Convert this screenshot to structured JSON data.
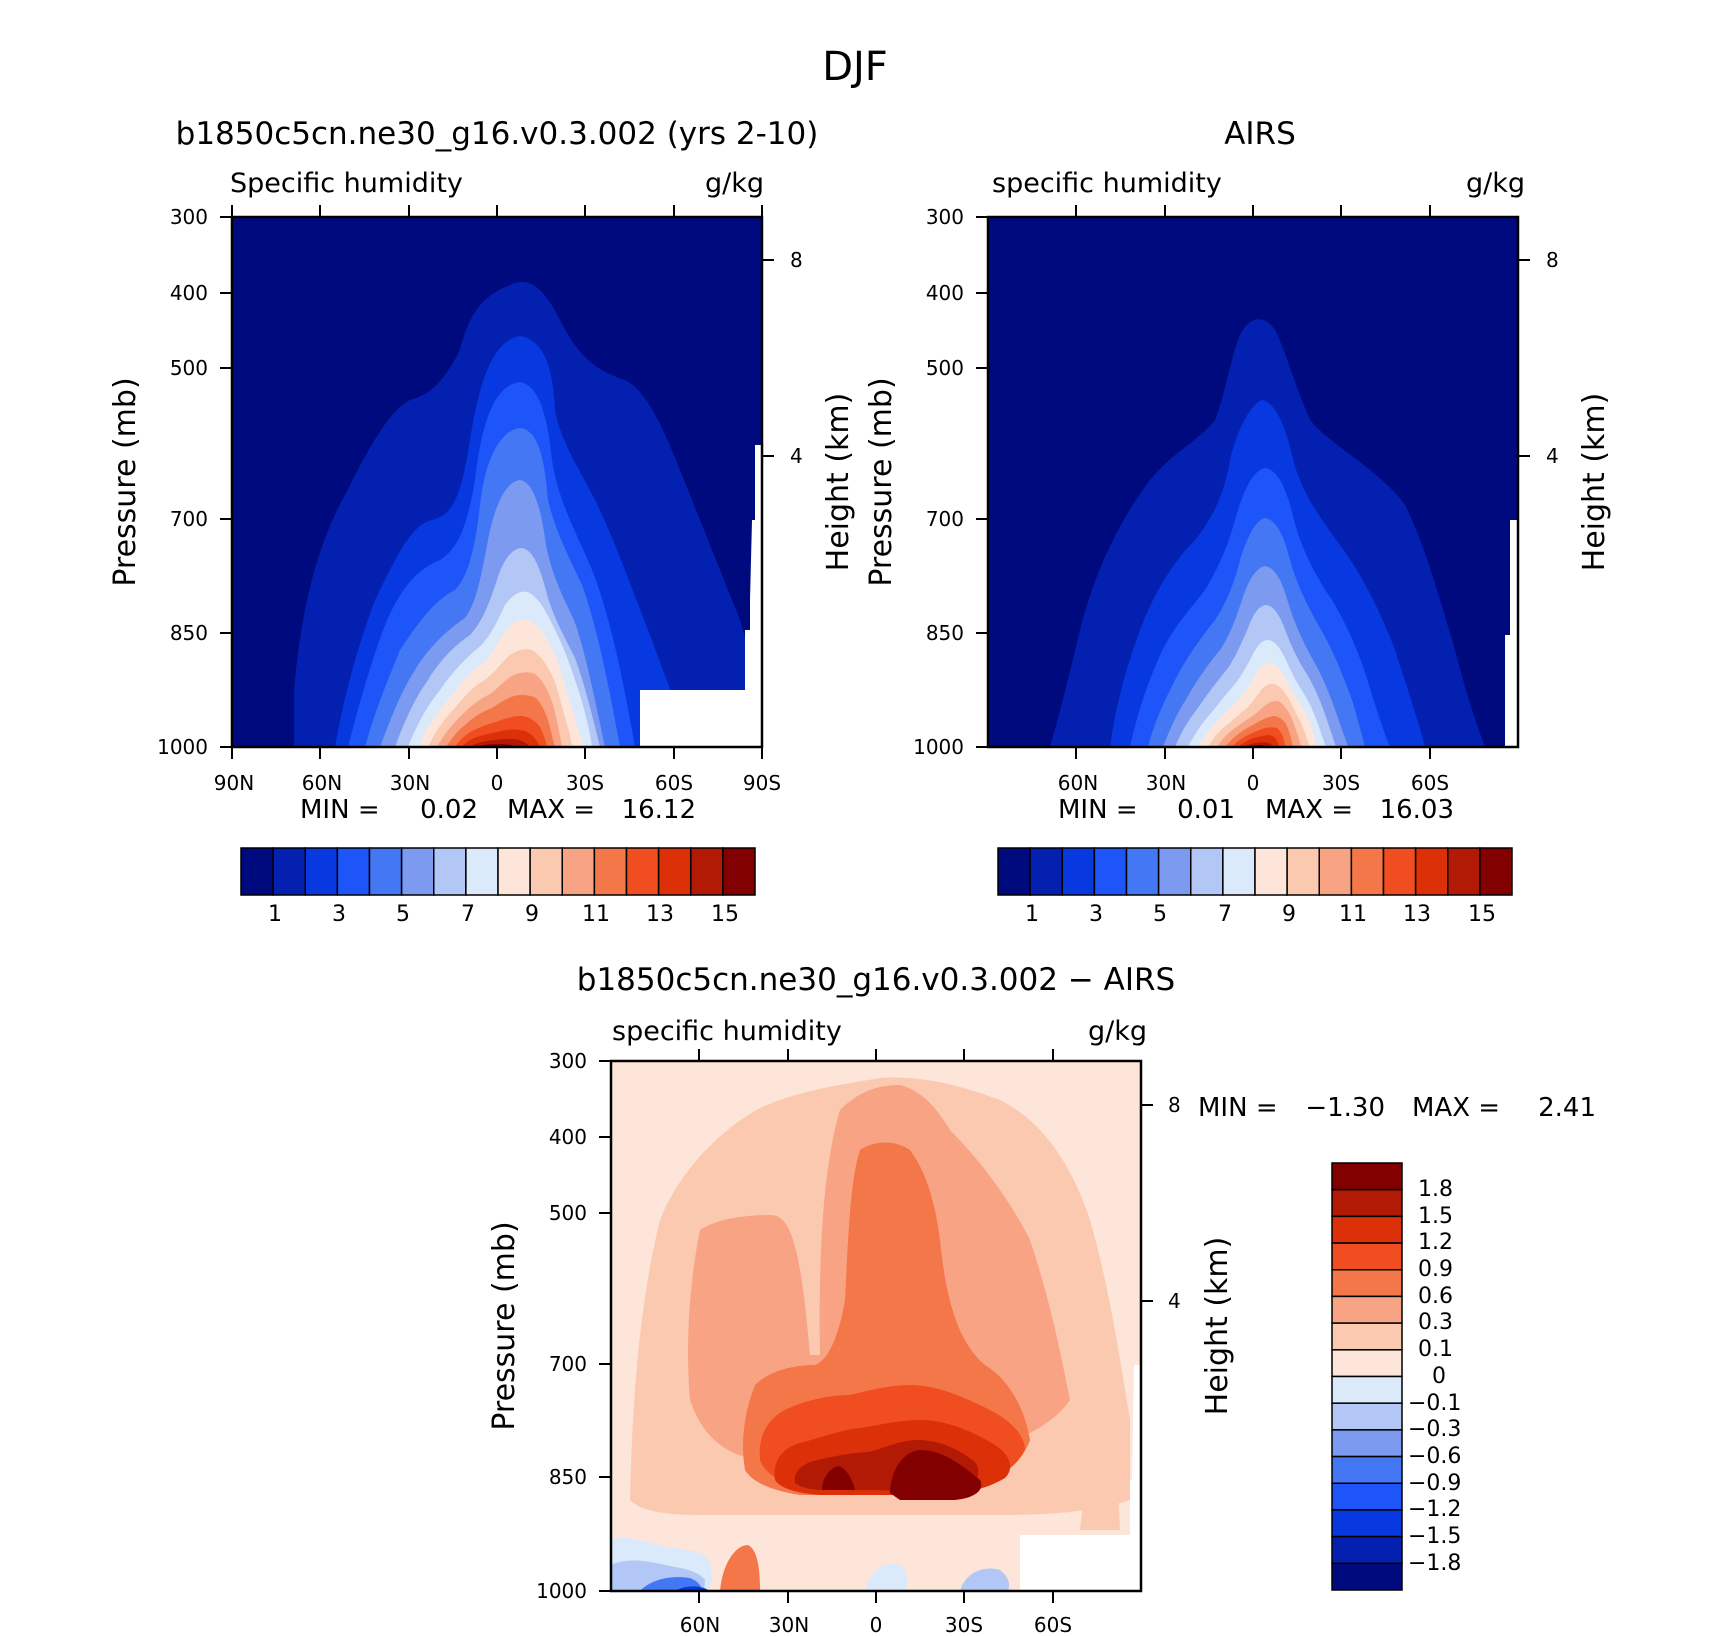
{
  "figure": {
    "title": "DJF"
  },
  "colors": {
    "abs_scale": [
      "#000a7f",
      "#0320b0",
      "#0838e0",
      "#1d55f8",
      "#4477f3",
      "#7b9af0",
      "#b2c7f6",
      "#daeafb",
      "#fde6d9",
      "#fbc8b0",
      "#f8a484",
      "#f47749",
      "#f04d20",
      "#dc3008",
      "#b21a05",
      "#820000"
    ],
    "diff_scale": [
      "#000a7f",
      "#0320b0",
      "#0838e0",
      "#1d55f8",
      "#4477f3",
      "#7b9af0",
      "#b2c7f6",
      "#daeafb",
      "#fde6d9",
      "#fbc8b0",
      "#f8a484",
      "#f47749",
      "#f04d20",
      "#dc3008",
      "#b21a05",
      "#820000"
    ]
  },
  "chart_data": [
    {
      "type": "heatmap",
      "name": "model",
      "title": "b1850c5cn.ne30_g16.v0.3.002 (yrs 2-10)",
      "left_label": "Specific humidity",
      "right_label": "g/kg",
      "ylabel": "Pressure (mb)",
      "y2label": "Height (km)",
      "yticks": [
        "300",
        "400",
        "500",
        "700",
        "850",
        "1000"
      ],
      "y2ticks": [
        "8",
        "4"
      ],
      "xticks": [
        "90N",
        "60N",
        "30N",
        "0",
        "30S",
        "60S",
        "90S"
      ],
      "xlim": [
        90,
        -90
      ],
      "ylim": [
        1000,
        300
      ],
      "y_scale": "log",
      "stats": {
        "min_label": "MIN =",
        "min": "0.02",
        "max_label": "MAX =",
        "max": "16.12"
      },
      "colorbar": {
        "orientation": "horizontal",
        "labels": [
          "1",
          "3",
          "5",
          "7",
          "9",
          "11",
          "13",
          "15"
        ]
      }
    },
    {
      "type": "heatmap",
      "name": "obs",
      "title": "AIRS",
      "left_label": "specific humidity",
      "right_label": "g/kg",
      "ylabel": "Pressure (mb)",
      "y2label": "Height (km)",
      "yticks": [
        "300",
        "400",
        "500",
        "700",
        "850",
        "1000"
      ],
      "y2ticks": [
        "8",
        "4"
      ],
      "xticks": [
        "60N",
        "30N",
        "0",
        "30S",
        "60S"
      ],
      "xlim": [
        90,
        -90
      ],
      "ylim": [
        1000,
        300
      ],
      "y_scale": "log",
      "stats": {
        "min_label": "MIN =",
        "min": "0.01",
        "max_label": "MAX =",
        "max": "16.03"
      },
      "colorbar": {
        "orientation": "horizontal",
        "labels": [
          "1",
          "3",
          "5",
          "7",
          "9",
          "11",
          "13",
          "15"
        ]
      }
    },
    {
      "type": "heatmap",
      "name": "diff",
      "title": "b1850c5cn.ne30_g16.v0.3.002 − AIRS",
      "left_label": "specific humidity",
      "right_label": "g/kg",
      "ylabel": "Pressure (mb)",
      "y2label": "Height (km)",
      "yticks": [
        "300",
        "400",
        "500",
        "700",
        "850",
        "1000"
      ],
      "y2ticks": [
        "8",
        "4"
      ],
      "xticks": [
        "60N",
        "30N",
        "0",
        "30S",
        "60S"
      ],
      "xlim": [
        90,
        -90
      ],
      "ylim": [
        1000,
        300
      ],
      "y_scale": "log",
      "stats": {
        "min_label": "MIN =",
        "min": "−1.30",
        "max_label": "MAX =",
        "max": "2.41"
      },
      "colorbar": {
        "orientation": "vertical",
        "labels": [
          "1.8",
          "1.5",
          "1.2",
          "0.9",
          "0.6",
          "0.3",
          "0.1",
          "0",
          "−0.1",
          "−0.3",
          "−0.6",
          "−0.9",
          "−1.2",
          "−1.5",
          "−1.8"
        ]
      }
    }
  ]
}
